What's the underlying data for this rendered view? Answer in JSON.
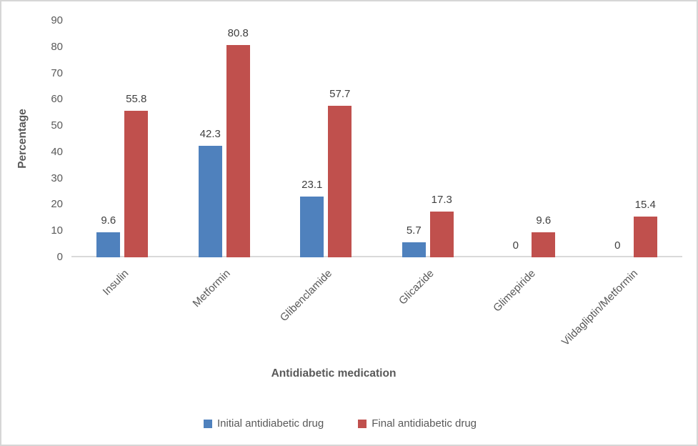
{
  "chart_data": {
    "type": "bar",
    "categories": [
      "Insulin",
      "Metformin",
      "Glibenclamide",
      "Glicazide",
      "Glimepiride",
      "Vildagliptin/Metformin"
    ],
    "series": [
      {
        "name": "Initial antidiabetic drug",
        "color": "#4F81BD",
        "values": [
          9.6,
          42.3,
          23.1,
          5.7,
          0,
          0
        ]
      },
      {
        "name": "Final antidiabetic drug",
        "color": "#C0504D",
        "values": [
          55.8,
          80.8,
          57.7,
          17.3,
          9.6,
          15.4
        ]
      }
    ],
    "title": "",
    "xlabel": "Antidiabetic medication",
    "ylabel": "Percentage",
    "ylim": [
      0,
      90
    ],
    "yticks": [
      0,
      10,
      20,
      30,
      40,
      50,
      60,
      70,
      80,
      90
    ],
    "grid": false,
    "legend_position": "bottom",
    "data_labels": true,
    "colors": {
      "tick_text": "#595959",
      "value_label_text": "#404040",
      "axis_line": "#d9d9d9",
      "frame_border": "#d6d6d6",
      "background": "#ffffff"
    }
  }
}
